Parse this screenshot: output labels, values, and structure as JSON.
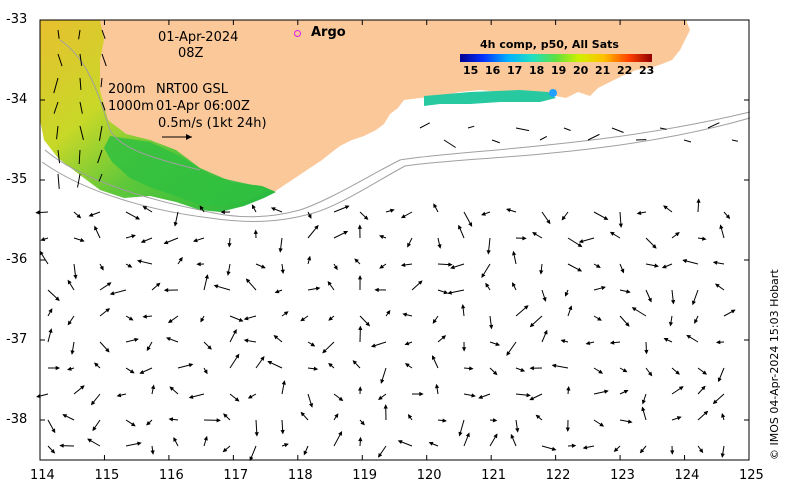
{
  "map": {
    "lon_ticks": [
      "114",
      "115",
      "116",
      "117",
      "118",
      "119",
      "120",
      "121",
      "122",
      "123",
      "124",
      "125"
    ],
    "lat_ticks": [
      "-33",
      "-34",
      "-35",
      "-36",
      "-37",
      "-38"
    ],
    "lon_range": [
      114,
      125
    ],
    "lat_range": [
      -38.5,
      -33
    ]
  },
  "annotations": {
    "date": "01-Apr-2024",
    "hour": "08Z",
    "depth_200": "200m",
    "depth_1000": "1000m",
    "product": "NRT00 GSL",
    "product_time": "01-Apr 06:00Z",
    "scale_label": "0.5m/s (1kt 24h)"
  },
  "argo": {
    "label": "Argo",
    "color": "#e020e0"
  },
  "colorbar": {
    "title": "4h comp, p50, All Sats",
    "labels": [
      "15",
      "16",
      "17",
      "18",
      "19",
      "20",
      "21",
      "22",
      "23"
    ]
  },
  "credit": "© IMOS 04-Apr-2024 15:03 Hobart",
  "colors": {
    "land": "#fbc89a",
    "warm_sst": "#e8c838",
    "cool_sst": "#2ab83a"
  }
}
